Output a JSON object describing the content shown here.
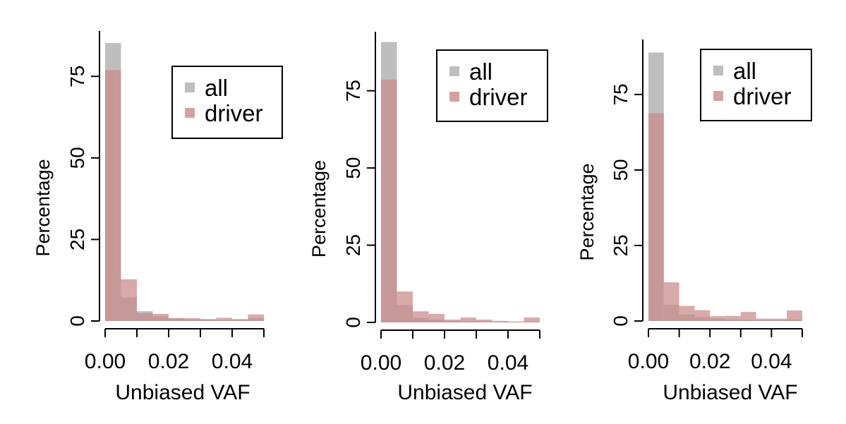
{
  "colors": {
    "all": "#bebebe",
    "driver": "#c98989",
    "axis": "#000000",
    "background": "#ffffff"
  },
  "legend_entries": [
    "all",
    "driver"
  ],
  "chart_data": [
    {
      "type": "bar",
      "xlabel": "Unbiased VAF",
      "ylabel": "Percentage",
      "xlim": [
        0,
        0.05
      ],
      "ylim": [
        0,
        85
      ],
      "x_ticks": [
        "0.00",
        "0.02",
        "0.04"
      ],
      "x_tick_values": [
        0,
        0.02,
        0.04
      ],
      "y_ticks": [
        "0",
        "25",
        "50",
        "75"
      ],
      "y_tick_values": [
        0,
        25,
        50,
        75
      ],
      "legend_position": "top-right",
      "grid": false,
      "bin_edges": [
        0,
        0.005,
        0.01,
        0.015,
        0.02,
        0.025,
        0.03,
        0.035,
        0.04,
        0.045,
        0.05
      ],
      "series": [
        {
          "name": "all",
          "values": [
            85.2,
            7.2,
            3.0,
            1.5,
            0.8,
            0.5,
            0.4,
            0.3,
            0.3,
            0.9
          ]
        },
        {
          "name": "driver",
          "values": [
            76.9,
            12.8,
            2.4,
            2.2,
            0.9,
            0.9,
            0.6,
            1.0,
            0.6,
            2.0
          ]
        }
      ]
    },
    {
      "type": "bar",
      "xlabel": "Unbiased VAF",
      "ylabel": "Percentage",
      "xlim": [
        0,
        0.05
      ],
      "ylim": [
        0,
        90
      ],
      "x_ticks": [
        "0.00",
        "0.02",
        "0.04"
      ],
      "x_tick_values": [
        0,
        0.02,
        0.04
      ],
      "y_ticks": [
        "0",
        "25",
        "50",
        "75"
      ],
      "y_tick_values": [
        0,
        25,
        50,
        75
      ],
      "legend_position": "top-right",
      "grid": false,
      "bin_edges": [
        0,
        0.005,
        0.01,
        0.015,
        0.02,
        0.025,
        0.03,
        0.035,
        0.04,
        0.045,
        0.05
      ],
      "series": [
        {
          "name": "all",
          "values": [
            90.8,
            5.6,
            1.5,
            0.9,
            0.5,
            0.4,
            0.3,
            0.2,
            0.2,
            0.3
          ]
        },
        {
          "name": "driver",
          "values": [
            78.6,
            10.0,
            3.6,
            2.8,
            0.9,
            1.6,
            0.9,
            0.5,
            0.3,
            1.6
          ]
        }
      ]
    },
    {
      "type": "bar",
      "xlabel": "Unbiased VAF",
      "ylabel": "Percentage",
      "xlim": [
        0,
        0.05
      ],
      "ylim": [
        0,
        89
      ],
      "x_ticks": [
        "0.00",
        "0.02",
        "0.04"
      ],
      "x_tick_values": [
        0,
        0.02,
        0.04
      ],
      "y_ticks": [
        "0",
        "25",
        "50",
        "75"
      ],
      "y_tick_values": [
        0,
        25,
        50,
        75
      ],
      "legend_position": "top-right",
      "grid": false,
      "bin_edges": [
        0,
        0.005,
        0.01,
        0.015,
        0.02,
        0.025,
        0.03,
        0.035,
        0.04,
        0.045,
        0.05
      ],
      "series": [
        {
          "name": "all",
          "values": [
            88.9,
            5.4,
            2.2,
            1.3,
            0.8,
            0.5,
            0.4,
            0.3,
            0.3,
            0.5
          ]
        },
        {
          "name": "driver",
          "values": [
            68.8,
            12.8,
            5.0,
            3.6,
            1.6,
            1.7,
            3.0,
            0.8,
            0.8,
            3.5
          ]
        }
      ]
    }
  ]
}
